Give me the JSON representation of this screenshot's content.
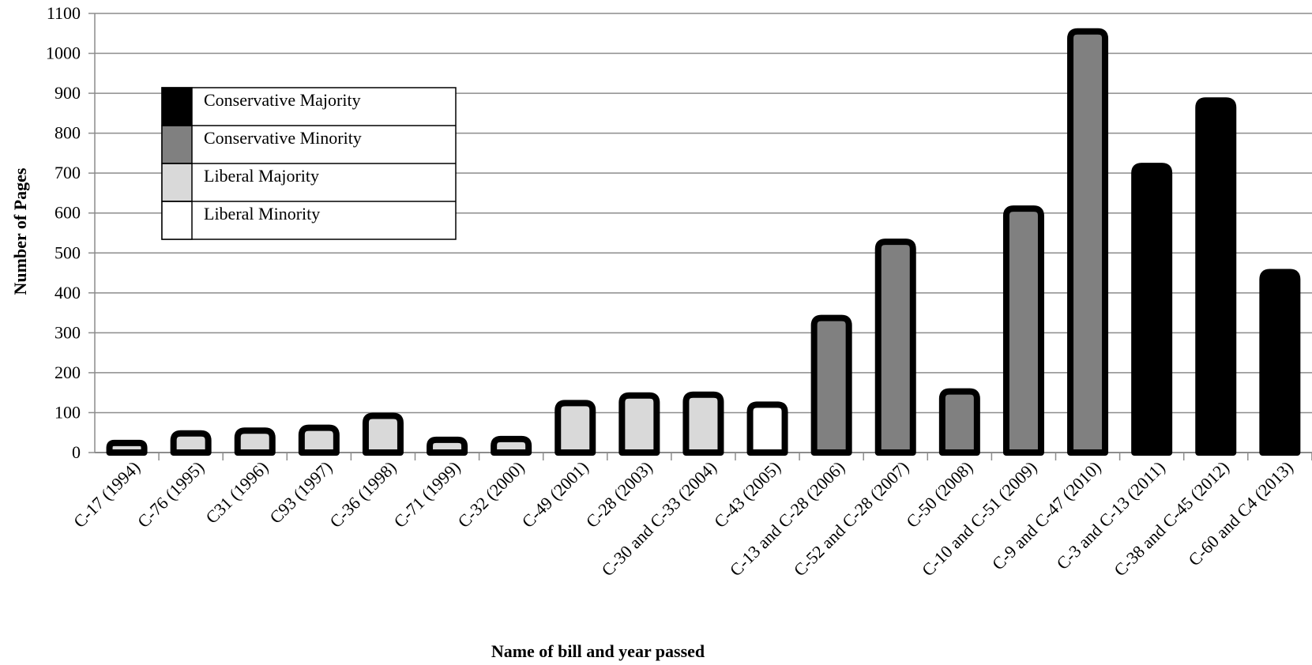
{
  "chart_data": {
    "type": "bar",
    "xlabel": "Name of bill and year passed",
    "ylabel": "Number of Pages",
    "ylim": [
      0,
      1100
    ],
    "yticks": [
      "0",
      "100",
      "200",
      "300",
      "400",
      "500",
      "600",
      "700",
      "800",
      "900",
      "1000",
      "1100"
    ],
    "grid": true,
    "legend_position": "top-left",
    "categories": [
      "C-17 (1994)",
      "C-76 (1995)",
      "C31 (1996)",
      "C93 (1997)",
      "C-36 (1998)",
      "C-71 (1999)",
      "C-32 (2000)",
      "C-49 (2001)",
      "C-28 (2003)",
      "C-30 and C-33 (2004)",
      "C-43 (2005)",
      "C-13 and C-28 (2006)",
      "C-52 and C-28 (2007)",
      "C-50 (2008)",
      "C-10 and C-51 (2009)",
      "C-9 and C-47 (2010)",
      "C-3 and C-13 (2011)",
      "C-38 and C-45 (2012)",
      "C-60 and C4 (2013)"
    ],
    "values": [
      24,
      48,
      55,
      62,
      92,
      32,
      34,
      124,
      143,
      145,
      120,
      337,
      528,
      153,
      611,
      1055,
      718,
      882,
      452
    ],
    "groups": [
      "Liberal Majority",
      "Liberal Majority",
      "Liberal Majority",
      "Liberal Majority",
      "Liberal Majority",
      "Liberal Majority",
      "Liberal Majority",
      "Liberal Majority",
      "Liberal Majority",
      "Liberal Majority",
      "Liberal Minority",
      "Conservative Minority",
      "Conservative Minority",
      "Conservative Minority",
      "Conservative Minority",
      "Conservative Minority",
      "Conservative Majority",
      "Conservative Majority",
      "Conservative Majority"
    ],
    "legend": [
      {
        "name": "Conservative Majority",
        "color": "#000000"
      },
      {
        "name": "Conservative Minority",
        "color": "#808080"
      },
      {
        "name": "Liberal Majority",
        "color": "#d9d9d9"
      },
      {
        "name": "Liberal Minority",
        "color": "#ffffff"
      }
    ]
  }
}
